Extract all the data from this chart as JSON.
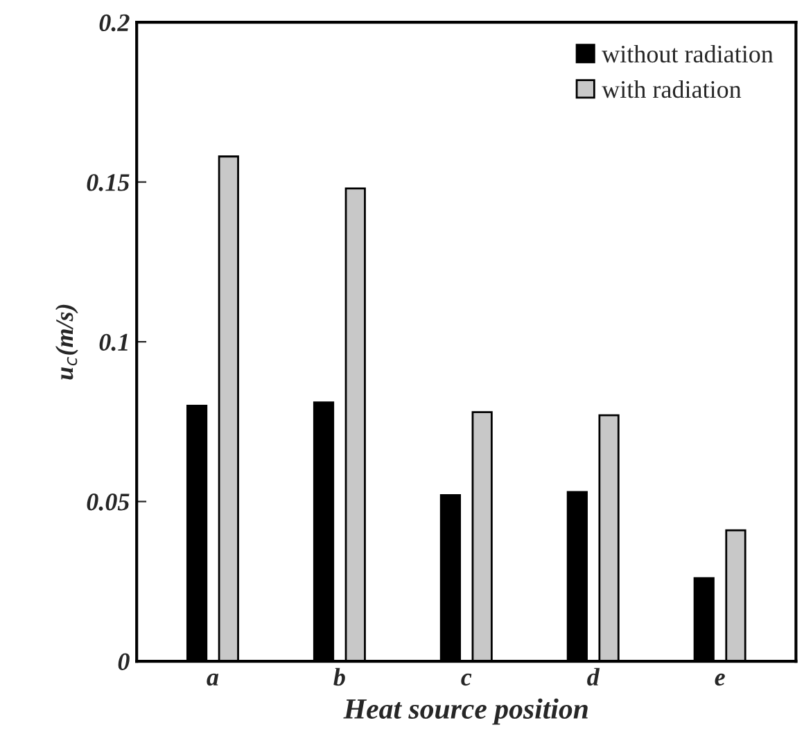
{
  "chart_data": {
    "type": "bar",
    "xlabel": "Heat source position",
    "ylabel": "u$_{c}$(m/s)",
    "categories": [
      "a",
      "b",
      "c",
      "d",
      "e"
    ],
    "series": [
      {
        "name": "without radiation",
        "color": "#000000",
        "values": [
          0.08,
          0.081,
          0.052,
          0.053,
          0.026
        ]
      },
      {
        "name": "with radiation",
        "color": "#c8c8c8",
        "values": [
          0.158,
          0.148,
          0.078,
          0.077,
          0.041
        ]
      }
    ],
    "ylim": [
      0,
      0.2
    ],
    "yticks": [
      0,
      0.05,
      0.1,
      0.15,
      0.2
    ],
    "grid": false,
    "legend": "top right"
  }
}
